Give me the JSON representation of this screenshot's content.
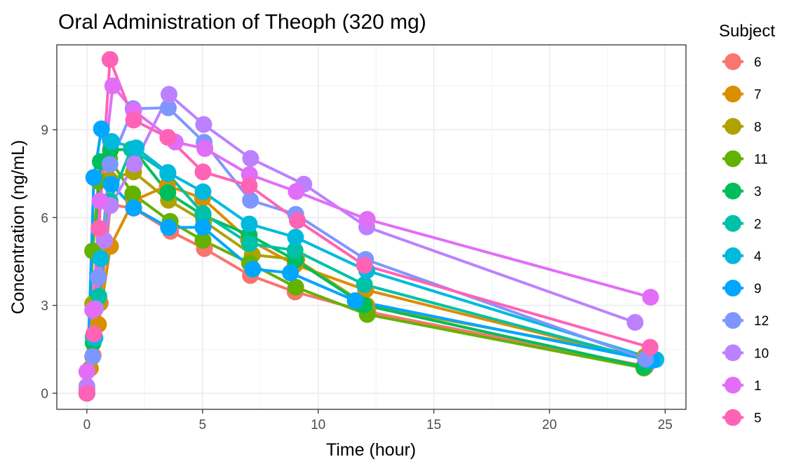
{
  "chart_data": {
    "type": "line",
    "title": "Oral Administration of Theoph (320 mg)",
    "xlabel": "Time (hour)",
    "ylabel": "Concentration (ng/mL)",
    "xlim": [
      -1.3,
      25.9
    ],
    "ylim": [
      -0.55,
      11.9
    ],
    "x_ticks": [
      0,
      5,
      10,
      15,
      20,
      25
    ],
    "y_ticks": [
      0,
      3,
      6,
      9
    ],
    "grid": true,
    "legend": {
      "title": "Subject",
      "position": "right"
    },
    "series": [
      {
        "name": "6",
        "color": "#F8766D",
        "x": [
          0,
          0.27,
          0.58,
          1.02,
          2.02,
          3.62,
          5.08,
          7.07,
          9.0,
          12.15,
          24.17
        ],
        "y": [
          0,
          1.29,
          3.08,
          6.44,
          6.32,
          5.53,
          4.94,
          4.02,
          3.46,
          2.78,
          0.92
        ]
      },
      {
        "name": "7",
        "color": "#DB8E00",
        "x": [
          0,
          0.15,
          0.5,
          1.02,
          2.02,
          3.48,
          5.0,
          6.98,
          9.0,
          12.05,
          24.22
        ],
        "y": [
          0.15,
          0.85,
          2.35,
          5.02,
          6.58,
          7.09,
          6.66,
          5.25,
          4.39,
          3.53,
          1.15
        ]
      },
      {
        "name": "8",
        "color": "#AEA200",
        "x": [
          0,
          0.25,
          0.52,
          0.98,
          2.02,
          3.53,
          5.05,
          7.15,
          9.07,
          12.1,
          24.12
        ],
        "y": [
          0,
          3.05,
          3.05,
          7.31,
          7.56,
          6.59,
          5.88,
          4.73,
          4.57,
          3.0,
          1.25
        ]
      },
      {
        "name": "11",
        "color": "#64B200",
        "x": [
          0,
          0.25,
          0.5,
          0.98,
          1.98,
          3.6,
          5.02,
          7.03,
          9.03,
          12.12,
          24.08
        ],
        "y": [
          0,
          4.86,
          7.24,
          8.0,
          6.81,
          5.87,
          5.22,
          4.45,
          3.62,
          2.69,
          0.86
        ]
      },
      {
        "name": "3",
        "color": "#00BD5C",
        "x": [
          0,
          0.27,
          0.58,
          1.02,
          2.02,
          3.5,
          5.02,
          7.02,
          9.02,
          11.98,
          24.08
        ],
        "y": [
          0,
          1.72,
          7.91,
          8.31,
          8.33,
          6.85,
          6.08,
          5.4,
          4.55,
          3.01,
          0.9
        ]
      },
      {
        "name": "2",
        "color": "#00C1A7",
        "x": [
          0,
          0.27,
          0.52,
          1.0,
          1.92,
          3.5,
          5.02,
          7.03,
          9.0,
          12.0,
          24.3
        ],
        "y": [
          0,
          1.92,
          3.31,
          6.56,
          8.34,
          7.5,
          6.14,
          5.11,
          4.88,
          3.71,
          1.12
        ]
      },
      {
        "name": "4",
        "color": "#00BADE",
        "x": [
          0,
          0.35,
          0.6,
          1.07,
          2.13,
          3.5,
          5.02,
          7.02,
          9.02,
          12.1,
          24.6
        ],
        "y": [
          0,
          1.89,
          4.6,
          8.6,
          8.38,
          7.54,
          6.88,
          5.78,
          5.33,
          4.19,
          1.15
        ]
      },
      {
        "name": "9",
        "color": "#00A6FF",
        "x": [
          0,
          0.3,
          0.63,
          1.05,
          2.02,
          3.53,
          5.02,
          7.17,
          8.8,
          11.6,
          24.43
        ],
        "y": [
          0,
          7.37,
          9.03,
          7.14,
          6.33,
          5.66,
          5.67,
          4.24,
          4.11,
          3.16,
          1.12
        ]
      },
      {
        "name": "12",
        "color": "#7F96FF",
        "x": [
          0,
          0.25,
          0.5,
          1.0,
          2.0,
          3.52,
          5.07,
          7.07,
          9.03,
          12.05,
          24.15
        ],
        "y": [
          0,
          1.25,
          3.96,
          7.82,
          9.72,
          9.75,
          8.57,
          6.59,
          6.11,
          4.57,
          1.17
        ]
      },
      {
        "name": "10",
        "color": "#BC81FF",
        "x": [
          0,
          0.37,
          0.77,
          1.02,
          2.05,
          3.55,
          5.05,
          7.08,
          9.38,
          12.1,
          23.7
        ],
        "y": [
          0.24,
          2.89,
          5.22,
          6.41,
          7.83,
          10.21,
          9.18,
          8.02,
          7.14,
          5.68,
          2.42
        ]
      },
      {
        "name": "1",
        "color": "#E26EF7",
        "x": [
          0,
          0.25,
          0.57,
          1.12,
          2.02,
          3.82,
          5.1,
          7.03,
          9.05,
          12.12,
          24.37
        ],
        "y": [
          0.74,
          2.84,
          6.57,
          10.5,
          9.66,
          8.58,
          8.36,
          7.47,
          6.89,
          5.94,
          3.28
        ]
      },
      {
        "name": "5",
        "color": "#FF63B6",
        "x": [
          0,
          0.3,
          0.52,
          1.0,
          2.02,
          3.5,
          5.02,
          7.02,
          9.1,
          12.0,
          24.35
        ],
        "y": [
          0,
          2.02,
          5.63,
          11.4,
          9.33,
          8.74,
          7.56,
          7.09,
          5.9,
          4.37,
          1.57
        ]
      }
    ]
  }
}
